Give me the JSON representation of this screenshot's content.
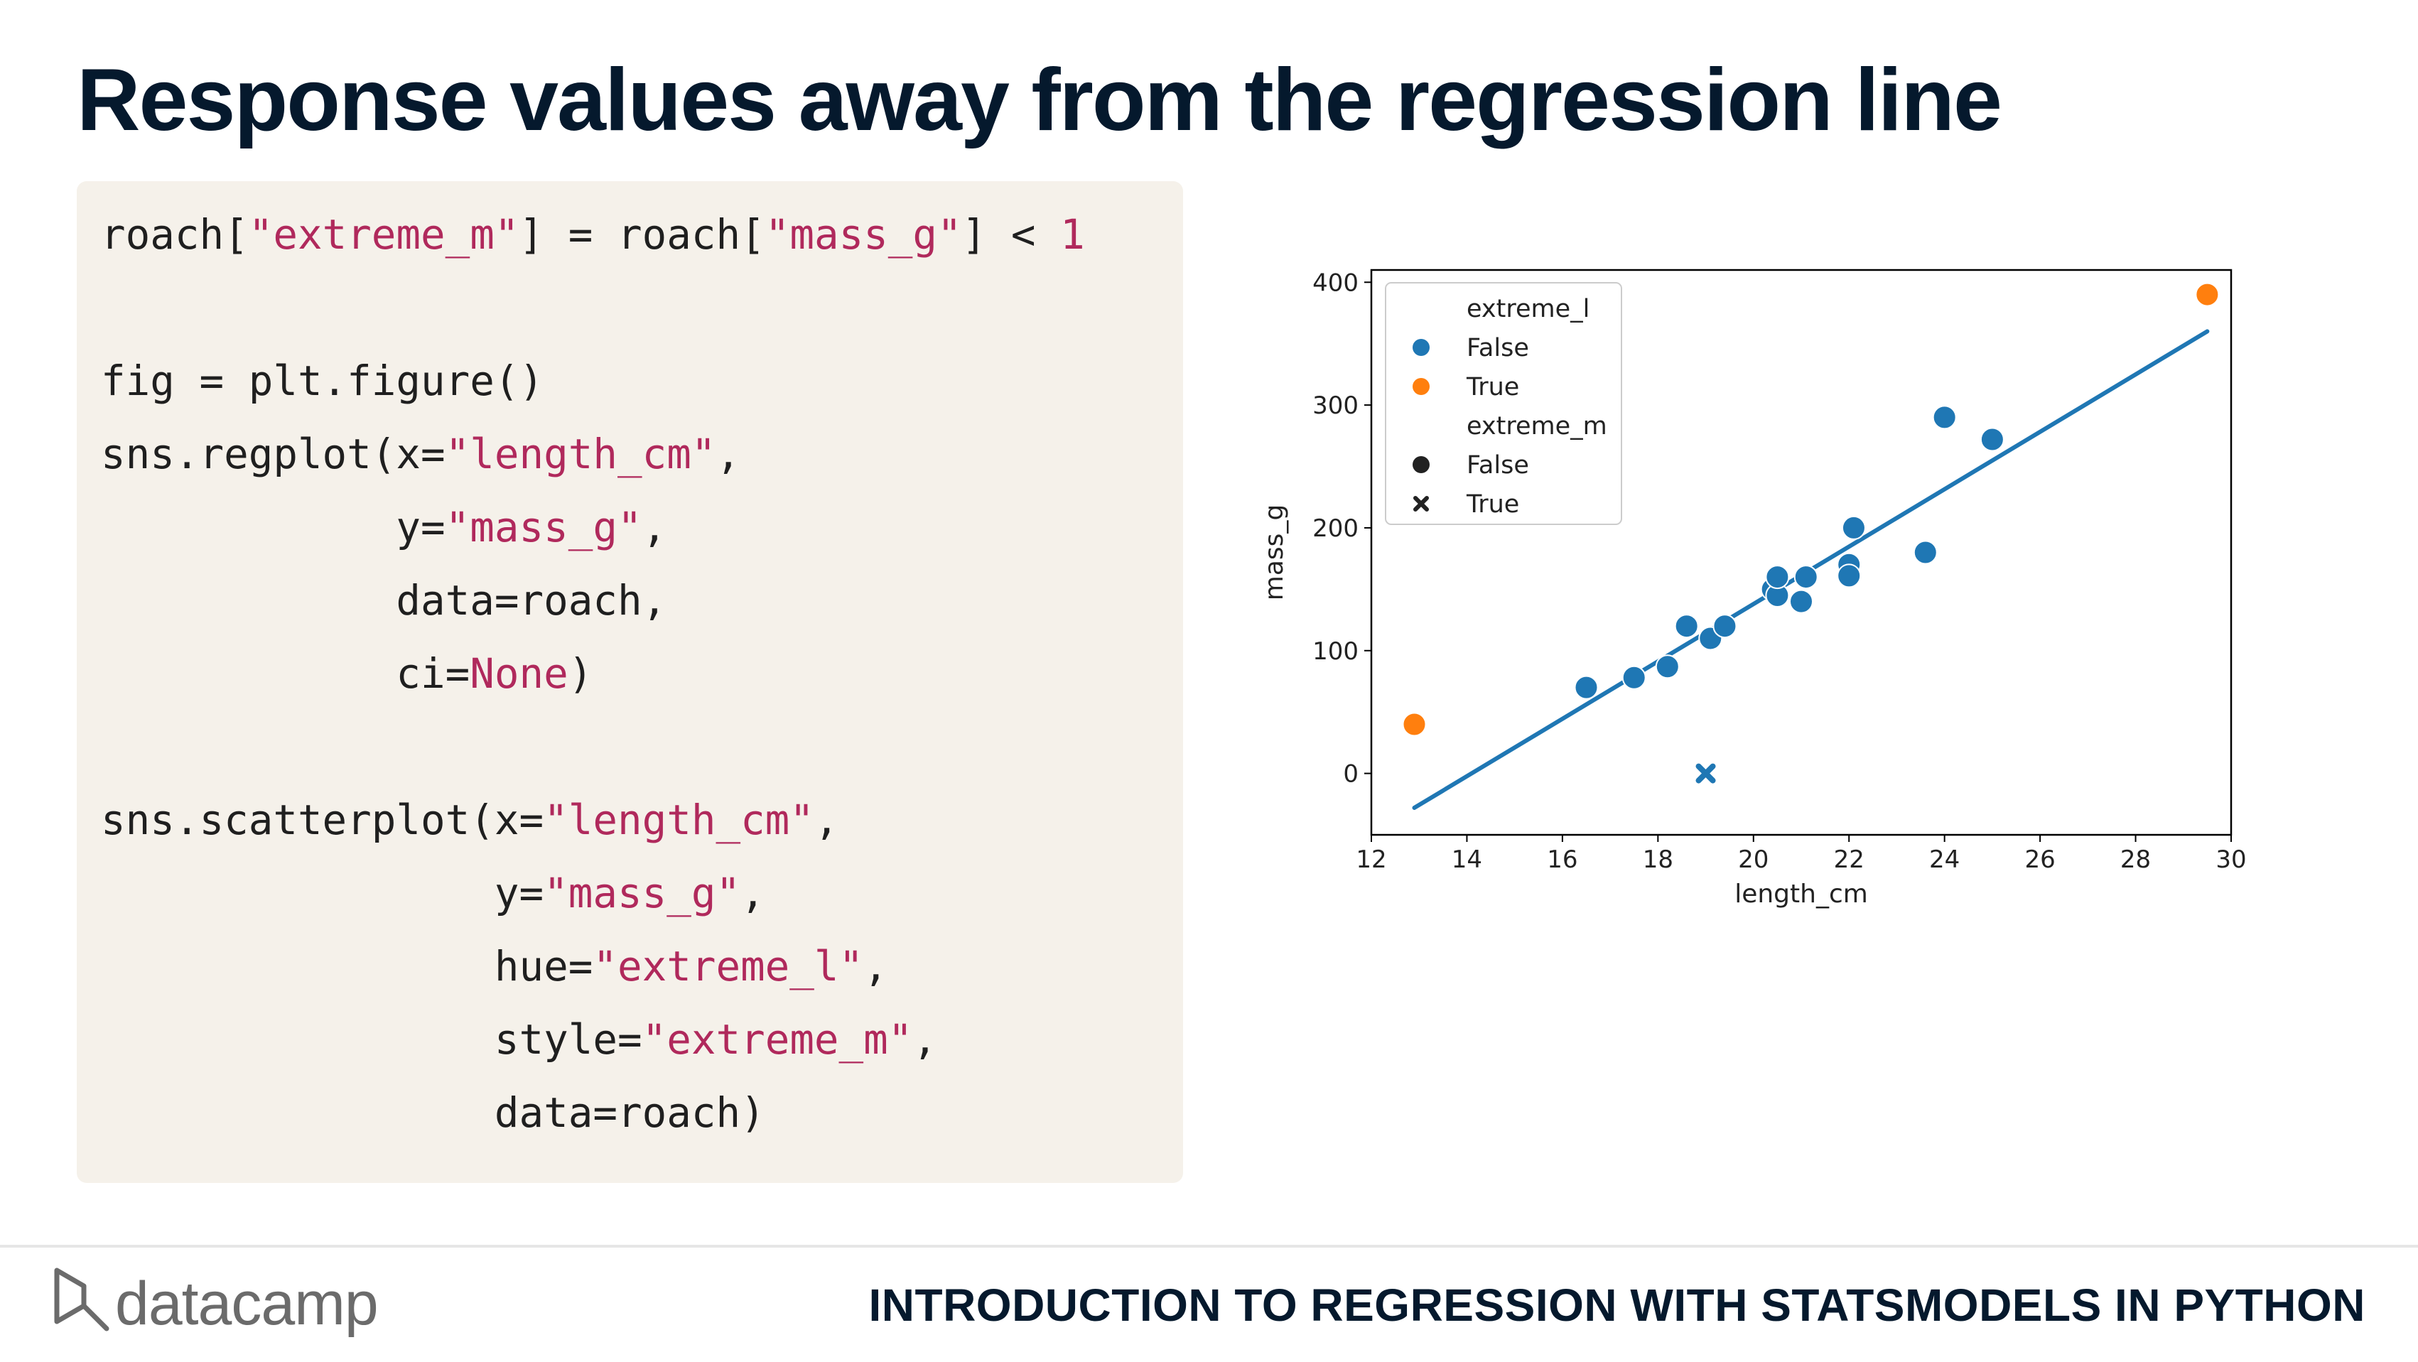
{
  "slide": {
    "title": "Response values away from the regression line"
  },
  "code": {
    "lines": [
      [
        {
          "t": "roach["
        },
        {
          "t": "\"extreme_m\"",
          "c": "s"
        },
        {
          "t": "] = roach["
        },
        {
          "t": "\"mass_g\"",
          "c": "s"
        },
        {
          "t": "] < "
        },
        {
          "t": "1",
          "c": "n"
        }
      ],
      [],
      [
        {
          "t": "fig = plt.figure()"
        }
      ],
      [
        {
          "t": "sns.regplot(x="
        },
        {
          "t": "\"length_cm\"",
          "c": "s"
        },
        {
          "t": ","
        }
      ],
      [
        {
          "t": "            y="
        },
        {
          "t": "\"mass_g\"",
          "c": "s"
        },
        {
          "t": ","
        }
      ],
      [
        {
          "t": "            data=roach,"
        }
      ],
      [
        {
          "t": "            ci="
        },
        {
          "t": "None",
          "c": "n"
        },
        {
          "t": ")"
        }
      ],
      [],
      [
        {
          "t": "sns.scatterplot(x="
        },
        {
          "t": "\"length_cm\"",
          "c": "s"
        },
        {
          "t": ","
        }
      ],
      [
        {
          "t": "                y="
        },
        {
          "t": "\"mass_g\"",
          "c": "s"
        },
        {
          "t": ","
        }
      ],
      [
        {
          "t": "                hue="
        },
        {
          "t": "\"extreme_l\"",
          "c": "s"
        },
        {
          "t": ","
        }
      ],
      [
        {
          "t": "                style="
        },
        {
          "t": "\"extreme_m\"",
          "c": "s"
        },
        {
          "t": ","
        }
      ],
      [
        {
          "t": "                data=roach)"
        }
      ]
    ]
  },
  "chart_data": {
    "type": "scatter",
    "xlabel": "length_cm",
    "ylabel": "mass_g",
    "xlim": [
      12,
      30
    ],
    "ylim": [
      -50,
      410
    ],
    "xticks": [
      12,
      14,
      16,
      18,
      20,
      22,
      24,
      26,
      28,
      30
    ],
    "yticks": [
      0,
      100,
      200,
      300,
      400
    ],
    "grid": false,
    "legend_position": "upper-left",
    "colors": {
      "false": "#1f77b4",
      "true": "#ff7f0e",
      "line": "#1f77b4"
    },
    "regression_line": {
      "x": [
        12.9,
        29.5
      ],
      "y": [
        -28,
        360
      ]
    },
    "legend": [
      {
        "label": "extreme_l",
        "marker": "none"
      },
      {
        "label": "False",
        "marker": "circle",
        "color": "#1f77b4"
      },
      {
        "label": "True",
        "marker": "circle",
        "color": "#ff7f0e"
      },
      {
        "label": "extreme_m",
        "marker": "none"
      },
      {
        "label": "False",
        "marker": "circle",
        "color": "#222222"
      },
      {
        "label": "True",
        "marker": "x",
        "color": "#222222"
      }
    ],
    "points": [
      {
        "x": 12.9,
        "y": 40,
        "extreme_l": true,
        "extreme_m": false
      },
      {
        "x": 29.5,
        "y": 390,
        "extreme_l": true,
        "extreme_m": false
      },
      {
        "x": 16.5,
        "y": 70,
        "extreme_l": false,
        "extreme_m": false
      },
      {
        "x": 17.5,
        "y": 78,
        "extreme_l": false,
        "extreme_m": false
      },
      {
        "x": 18.2,
        "y": 87,
        "extreme_l": false,
        "extreme_m": false
      },
      {
        "x": 18.6,
        "y": 120,
        "extreme_l": false,
        "extreme_m": false
      },
      {
        "x": 19.1,
        "y": 110,
        "extreme_l": false,
        "extreme_m": false
      },
      {
        "x": 19.4,
        "y": 120,
        "extreme_l": false,
        "extreme_m": false
      },
      {
        "x": 19.0,
        "y": 0,
        "extreme_l": false,
        "extreme_m": true
      },
      {
        "x": 20.4,
        "y": 150,
        "extreme_l": false,
        "extreme_m": false
      },
      {
        "x": 20.5,
        "y": 145,
        "extreme_l": false,
        "extreme_m": false
      },
      {
        "x": 20.5,
        "y": 160,
        "extreme_l": false,
        "extreme_m": false
      },
      {
        "x": 21.0,
        "y": 140,
        "extreme_l": false,
        "extreme_m": false
      },
      {
        "x": 21.1,
        "y": 160,
        "extreme_l": false,
        "extreme_m": false
      },
      {
        "x": 22.0,
        "y": 170,
        "extreme_l": false,
        "extreme_m": false
      },
      {
        "x": 22.0,
        "y": 161,
        "extreme_l": false,
        "extreme_m": false
      },
      {
        "x": 22.1,
        "y": 200,
        "extreme_l": false,
        "extreme_m": false
      },
      {
        "x": 23.6,
        "y": 180,
        "extreme_l": false,
        "extreme_m": false
      },
      {
        "x": 24.0,
        "y": 290,
        "extreme_l": false,
        "extreme_m": false
      },
      {
        "x": 25.0,
        "y": 272,
        "extreme_l": false,
        "extreme_m": false
      }
    ]
  },
  "footer": {
    "brand": "datacamp",
    "course": "INTRODUCTION TO REGRESSION WITH STATSMODELS IN PYTHON"
  }
}
